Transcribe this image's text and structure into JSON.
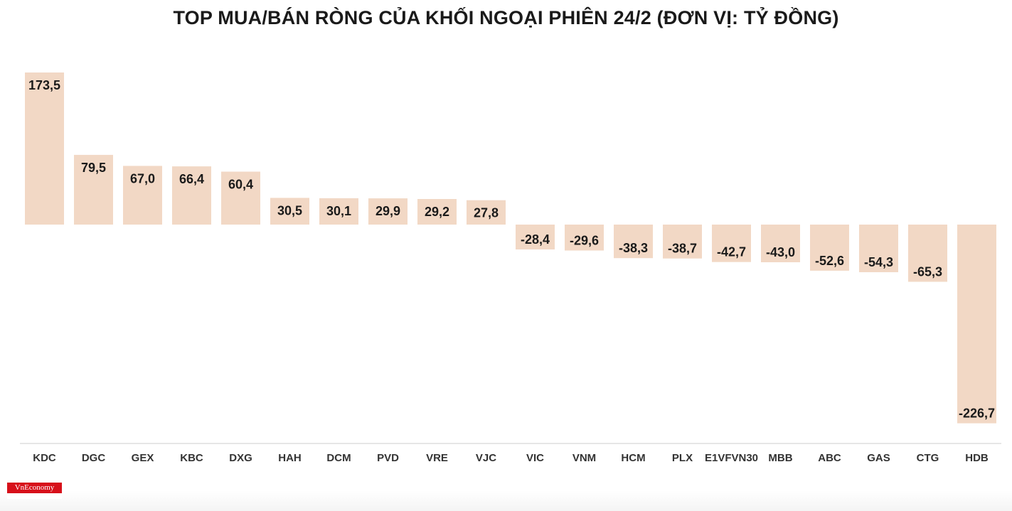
{
  "title": "TOP MUA/BÁN RÒNG CỦA KHỐI NGOẠI PHIÊN 24/2 (ĐƠN VỊ: TỶ ĐỒNG)",
  "logo": {
    "text": "VnEconomy"
  },
  "colors": {
    "bar": "#f2d8c5",
    "label": "#1a1a1a",
    "tick": "#333333",
    "axis": "#cccccc"
  },
  "chart_data": {
    "type": "bar",
    "title": "TOP MUA/BÁN RÒNG CỦA KHỐI NGOẠI PHIÊN 24/2 (ĐƠN VỊ: TỶ ĐỒNG)",
    "categories": [
      "KDC",
      "DGC",
      "GEX",
      "KBC",
      "DXG",
      "HAH",
      "DCM",
      "PVD",
      "VRE",
      "VJC",
      "VIC",
      "VNM",
      "HCM",
      "PLX",
      "E1VFVN30",
      "MBB",
      "ABC",
      "GAS",
      "CTG",
      "HDB"
    ],
    "values": [
      173.5,
      79.5,
      67.0,
      66.4,
      60.4,
      30.5,
      30.1,
      29.9,
      29.2,
      27.8,
      -28.4,
      -29.6,
      -38.3,
      -38.7,
      -42.7,
      -43.0,
      -52.6,
      -54.3,
      -65.3,
      -226.7
    ],
    "labels": [
      "173,5",
      "79,5",
      "67,0",
      "66,4",
      "60,4",
      "30,5",
      "30,1",
      "29,9",
      "29,2",
      "27,8",
      "-28,4",
      "-29,6",
      "-38,3",
      "-38,7",
      "-42,7",
      "-43,0",
      "-52,6",
      "-54,3",
      "-65,3",
      "-226,7"
    ],
    "xlabel": "",
    "ylabel": "",
    "ylim": [
      -226.7,
      173.5
    ],
    "grid": false
  }
}
